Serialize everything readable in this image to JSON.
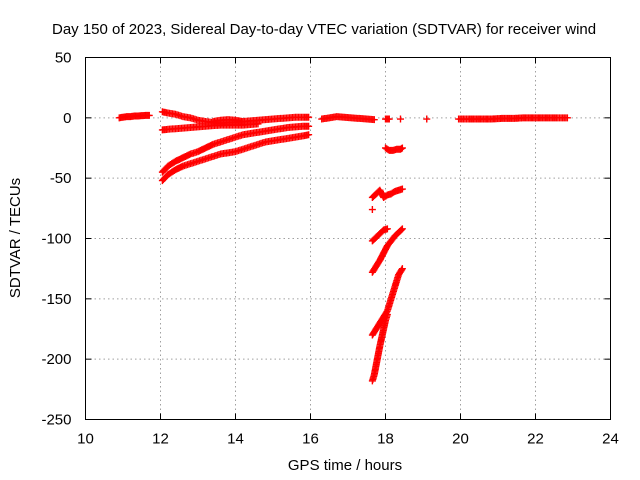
{
  "chart_data": {
    "type": "scatter",
    "title": "Day 150 of 2023, Sidereal Day-to-day VTEC variation (SDTVAR) for receiver wind",
    "xlabel": "GPS time / hours",
    "ylabel": "SDTVAR / TECUs",
    "xlim": [
      10,
      24
    ],
    "ylim": [
      -250,
      50
    ],
    "xticks": [
      10,
      12,
      14,
      16,
      18,
      20,
      22,
      24
    ],
    "yticks": [
      50,
      0,
      -50,
      -100,
      -150,
      -200,
      -250
    ],
    "grid": true,
    "legend": "none",
    "marker": "plus",
    "color": "#ff0000",
    "series": [
      {
        "values": [
          [
            10.9,
            0
          ],
          [
            11.0,
            0.5
          ],
          [
            11.1,
            1
          ],
          [
            11.2,
            1
          ],
          [
            11.3,
            1.5
          ],
          [
            11.4,
            1.5
          ],
          [
            11.5,
            1.8
          ],
          [
            11.6,
            2
          ],
          [
            11.7,
            2
          ]
        ]
      },
      {
        "values": [
          [
            12.05,
            5
          ],
          [
            12.2,
            4
          ],
          [
            12.4,
            3
          ],
          [
            12.6,
            1
          ],
          [
            12.8,
            0
          ],
          [
            13.0,
            -2
          ],
          [
            13.2,
            -3
          ],
          [
            13.4,
            -4
          ],
          [
            13.6,
            -4.5
          ],
          [
            13.8,
            -4
          ],
          [
            14.0,
            -3.5
          ],
          [
            14.2,
            -3
          ],
          [
            14.4,
            -2.5
          ],
          [
            14.6,
            -2
          ],
          [
            14.8,
            -1.5
          ],
          [
            15.0,
            -1
          ],
          [
            15.2,
            -0.5
          ],
          [
            15.4,
            0
          ],
          [
            15.6,
            0.5
          ],
          [
            15.8,
            0.5
          ],
          [
            15.95,
            0.5
          ]
        ]
      },
      {
        "values": [
          [
            12.05,
            -10
          ],
          [
            12.2,
            -9.5
          ],
          [
            12.4,
            -9
          ],
          [
            12.6,
            -8.5
          ],
          [
            12.8,
            -8
          ],
          [
            13.0,
            -7.5
          ],
          [
            13.2,
            -7
          ],
          [
            13.4,
            -6.5
          ],
          [
            13.6,
            -6
          ],
          [
            13.8,
            -6
          ],
          [
            14.0,
            -6
          ],
          [
            14.2,
            -6
          ],
          [
            14.4,
            -5.5
          ],
          [
            14.6,
            -5
          ]
        ]
      },
      {
        "values": [
          [
            13.4,
            -3
          ],
          [
            13.6,
            -2
          ],
          [
            13.8,
            -1.5
          ],
          [
            14.0,
            -2
          ],
          [
            14.2,
            -3
          ]
        ]
      },
      {
        "values": [
          [
            12.05,
            -45
          ],
          [
            12.2,
            -40
          ],
          [
            12.4,
            -36
          ],
          [
            12.6,
            -33
          ],
          [
            12.8,
            -30
          ],
          [
            13.0,
            -28
          ],
          [
            13.2,
            -25
          ],
          [
            13.4,
            -22
          ],
          [
            13.6,
            -20
          ],
          [
            13.8,
            -18
          ],
          [
            14.0,
            -16
          ],
          [
            14.2,
            -14
          ],
          [
            14.4,
            -13
          ],
          [
            14.6,
            -12
          ],
          [
            14.8,
            -11
          ],
          [
            15.0,
            -10
          ],
          [
            15.2,
            -9
          ],
          [
            15.4,
            -8
          ],
          [
            15.6,
            -7.5
          ],
          [
            15.8,
            -7
          ],
          [
            15.95,
            -7
          ]
        ]
      },
      {
        "values": [
          [
            12.05,
            -52
          ],
          [
            12.2,
            -47
          ],
          [
            12.4,
            -43
          ],
          [
            12.6,
            -40
          ],
          [
            12.8,
            -38
          ],
          [
            13.0,
            -36
          ],
          [
            13.2,
            -34
          ],
          [
            13.4,
            -32
          ],
          [
            13.6,
            -30
          ],
          [
            13.8,
            -29
          ],
          [
            14.0,
            -28
          ],
          [
            14.2,
            -26
          ],
          [
            14.4,
            -24
          ],
          [
            14.6,
            -22
          ],
          [
            14.8,
            -20
          ],
          [
            15.0,
            -19
          ],
          [
            15.2,
            -18
          ],
          [
            15.4,
            -17
          ],
          [
            15.6,
            -16
          ],
          [
            15.8,
            -15
          ],
          [
            15.95,
            -14
          ]
        ]
      },
      {
        "values": [
          [
            16.3,
            -1
          ],
          [
            16.5,
            0
          ],
          [
            16.7,
            1
          ],
          [
            16.9,
            0.5
          ],
          [
            17.1,
            0
          ],
          [
            17.3,
            -0.5
          ],
          [
            17.5,
            -1
          ],
          [
            17.7,
            -1.5
          ]
        ]
      },
      {
        "values": [
          [
            18.0,
            -1
          ],
          [
            18.1,
            -1
          ]
        ]
      },
      {
        "values": [
          [
            18.0,
            -25
          ],
          [
            18.1,
            -27
          ],
          [
            18.2,
            -27
          ],
          [
            18.3,
            -26
          ],
          [
            18.4,
            -26
          ],
          [
            18.45,
            -25
          ]
        ]
      },
      {
        "values": [
          [
            17.65,
            -66
          ],
          [
            17.75,
            -63
          ],
          [
            17.85,
            -60
          ],
          [
            17.95,
            -66
          ],
          [
            18.05,
            -64
          ],
          [
            18.15,
            -63
          ],
          [
            18.25,
            -61
          ],
          [
            18.35,
            -60
          ],
          [
            18.45,
            -59
          ]
        ]
      },
      {
        "values": [
          [
            17.65,
            -76
          ]
        ]
      },
      {
        "values": [
          [
            17.65,
            -102
          ],
          [
            17.75,
            -99
          ],
          [
            17.85,
            -96
          ],
          [
            17.95,
            -93
          ],
          [
            18.05,
            -92
          ]
        ]
      },
      {
        "values": [
          [
            17.65,
            -128
          ],
          [
            17.75,
            -123
          ],
          [
            17.85,
            -118
          ],
          [
            17.95,
            -112
          ],
          [
            18.05,
            -106
          ],
          [
            18.15,
            -102
          ],
          [
            18.25,
            -98
          ],
          [
            18.35,
            -95
          ],
          [
            18.45,
            -92
          ]
        ]
      },
      {
        "values": [
          [
            17.65,
            -180
          ],
          [
            17.75,
            -175
          ],
          [
            17.85,
            -170
          ],
          [
            17.95,
            -165
          ],
          [
            18.05,
            -160
          ],
          [
            18.15,
            -150
          ],
          [
            18.25,
            -140
          ],
          [
            18.35,
            -130
          ],
          [
            18.45,
            -125
          ]
        ]
      },
      {
        "values": [
          [
            17.65,
            -218
          ],
          [
            17.7,
            -213
          ],
          [
            17.75,
            -205
          ],
          [
            17.8,
            -197
          ],
          [
            17.85,
            -189
          ],
          [
            17.9,
            -182
          ],
          [
            17.95,
            -175
          ],
          [
            18.0,
            -168
          ],
          [
            18.05,
            -163
          ]
        ]
      },
      {
        "values": [
          [
            18.4,
            -1
          ]
        ]
      },
      {
        "values": [
          [
            19.1,
            -1
          ]
        ]
      },
      {
        "values": [
          [
            19.95,
            -1
          ],
          [
            20.2,
            -1
          ],
          [
            20.5,
            -1
          ],
          [
            20.8,
            -1
          ],
          [
            21.1,
            -0.5
          ],
          [
            21.4,
            -0.5
          ],
          [
            21.7,
            0
          ],
          [
            22.0,
            0
          ],
          [
            22.3,
            0
          ],
          [
            22.6,
            0
          ],
          [
            22.85,
            0
          ]
        ]
      }
    ]
  }
}
